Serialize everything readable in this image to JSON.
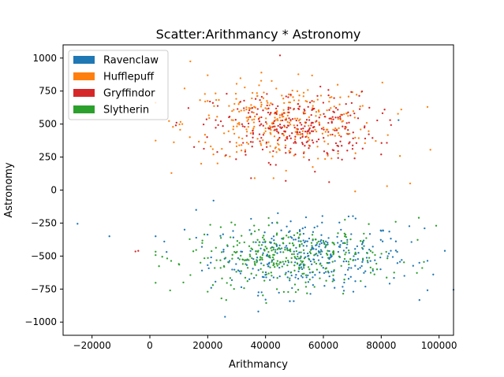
{
  "chart_data": {
    "type": "scatter",
    "title": "Scatter:Arithmancy * Astronomy",
    "xlabel": "Arithmancy",
    "ylabel": "Astronomy",
    "xlim": [
      -30000,
      105000
    ],
    "ylim": [
      -1100,
      1100
    ],
    "xticks": [
      -20000,
      0,
      20000,
      40000,
      60000,
      80000,
      100000
    ],
    "yticks": [
      -1000,
      -750,
      -500,
      -250,
      0,
      250,
      500,
      750,
      1000
    ],
    "grid": false,
    "legend_position": "top-left",
    "series": [
      {
        "name": "Ravenclaw",
        "color": "#1f77b4",
        "center": [
          55000,
          -500
        ],
        "spread": [
          17000,
          130
        ],
        "count": 330,
        "outliers": [
          [
            -25000,
            -255
          ],
          [
            -14000,
            -350
          ],
          [
            5000,
            -390
          ],
          [
            12000,
            -300
          ],
          [
            16000,
            -150
          ],
          [
            18000,
            -430
          ],
          [
            22000,
            -80
          ],
          [
            26000,
            -960
          ],
          [
            40000,
            -830
          ],
          [
            88000,
            -650
          ],
          [
            95000,
            -290
          ],
          [
            98000,
            -640
          ],
          [
            102000,
            -460
          ],
          [
            105000,
            -755
          ],
          [
            86000,
            530
          ]
        ]
      },
      {
        "name": "Hufflepuff",
        "color": "#ff7f0e",
        "center": [
          46000,
          510
        ],
        "spread": [
          17000,
          150
        ],
        "count": 330,
        "outliers": [
          [
            14000,
            975
          ],
          [
            20000,
            870
          ],
          [
            12000,
            770
          ],
          [
            97000,
            305
          ],
          [
            90000,
            50
          ],
          [
            71000,
            -10
          ],
          [
            82000,
            30
          ],
          [
            30000,
            805
          ]
        ]
      },
      {
        "name": "Gryffindor",
        "color": "#d62728",
        "center": [
          50000,
          480
        ],
        "spread": [
          14000,
          130
        ],
        "count": 290,
        "outliers": [
          [
            -5000,
            -465
          ],
          [
            -4000,
            -460
          ],
          [
            9000,
            490
          ],
          [
            45000,
            1020
          ],
          [
            35000,
            90
          ],
          [
            47000,
            70
          ],
          [
            62000,
            60
          ],
          [
            80000,
            270
          ]
        ]
      },
      {
        "name": "Slytherin",
        "color": "#2ca02c",
        "center": [
          48000,
          -510
        ],
        "spread": [
          17000,
          110
        ],
        "count": 340,
        "outliers": [
          [
            7000,
            -760
          ],
          [
            93000,
            -210
          ],
          [
            99000,
            -270
          ],
          [
            20000,
            -770
          ],
          [
            10000,
            -560
          ],
          [
            85000,
            -240
          ],
          [
            28000,
            -720
          ]
        ]
      }
    ]
  }
}
